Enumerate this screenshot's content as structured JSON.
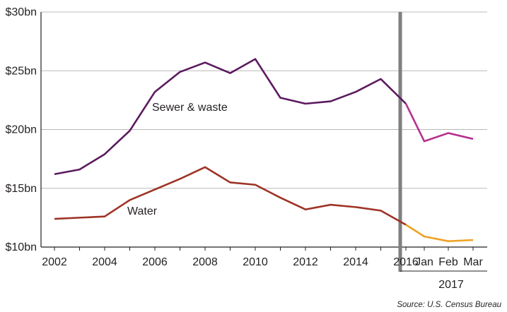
{
  "chart_data": {
    "type": "line",
    "title": "",
    "xlabel": "",
    "ylabel": "",
    "ylim": [
      10,
      30
    ],
    "y_ticks": [
      10,
      15,
      20,
      25,
      30
    ],
    "y_tick_labels": [
      "$10bn",
      "$15bn",
      "$20bn",
      "$25bn",
      "$30bn"
    ],
    "annual_x_labels": [
      "2002",
      "2004",
      "2006",
      "2008",
      "2010",
      "2012",
      "2014",
      "2016"
    ],
    "monthly_x_labels": [
      "Jan",
      "Feb",
      "Mar"
    ],
    "monthly_group_label": "2017",
    "source": "Source: U.S. Census Bureau",
    "grid": "horizontal",
    "annual_years": [
      2002,
      2003,
      2004,
      2005,
      2006,
      2007,
      2008,
      2009,
      2010,
      2011,
      2012,
      2013,
      2014,
      2015,
      2016
    ],
    "monthly_periods": [
      "Jan 2017",
      "Feb 2017",
      "Mar 2017"
    ],
    "series": [
      {
        "name": "Sewer & waste",
        "annual_color": "#5b1a5e",
        "monthly_color": "#b5338f",
        "annual_values": [
          16.2,
          16.6,
          17.9,
          19.9,
          23.2,
          24.9,
          25.7,
          24.8,
          26.0,
          22.7,
          22.2,
          22.4,
          23.2,
          24.3,
          22.2
        ],
        "monthly_values": [
          19.0,
          19.7,
          19.2
        ]
      },
      {
        "name": "Water",
        "annual_color": "#9e3326",
        "monthly_color": "#f0a122",
        "annual_values": [
          12.4,
          12.5,
          12.6,
          14.0,
          14.9,
          15.8,
          16.8,
          15.5,
          15.3,
          14.2,
          13.2,
          13.6,
          13.4,
          13.1,
          11.9
        ],
        "monthly_values": [
          10.9,
          10.5,
          10.6
        ]
      }
    ]
  }
}
